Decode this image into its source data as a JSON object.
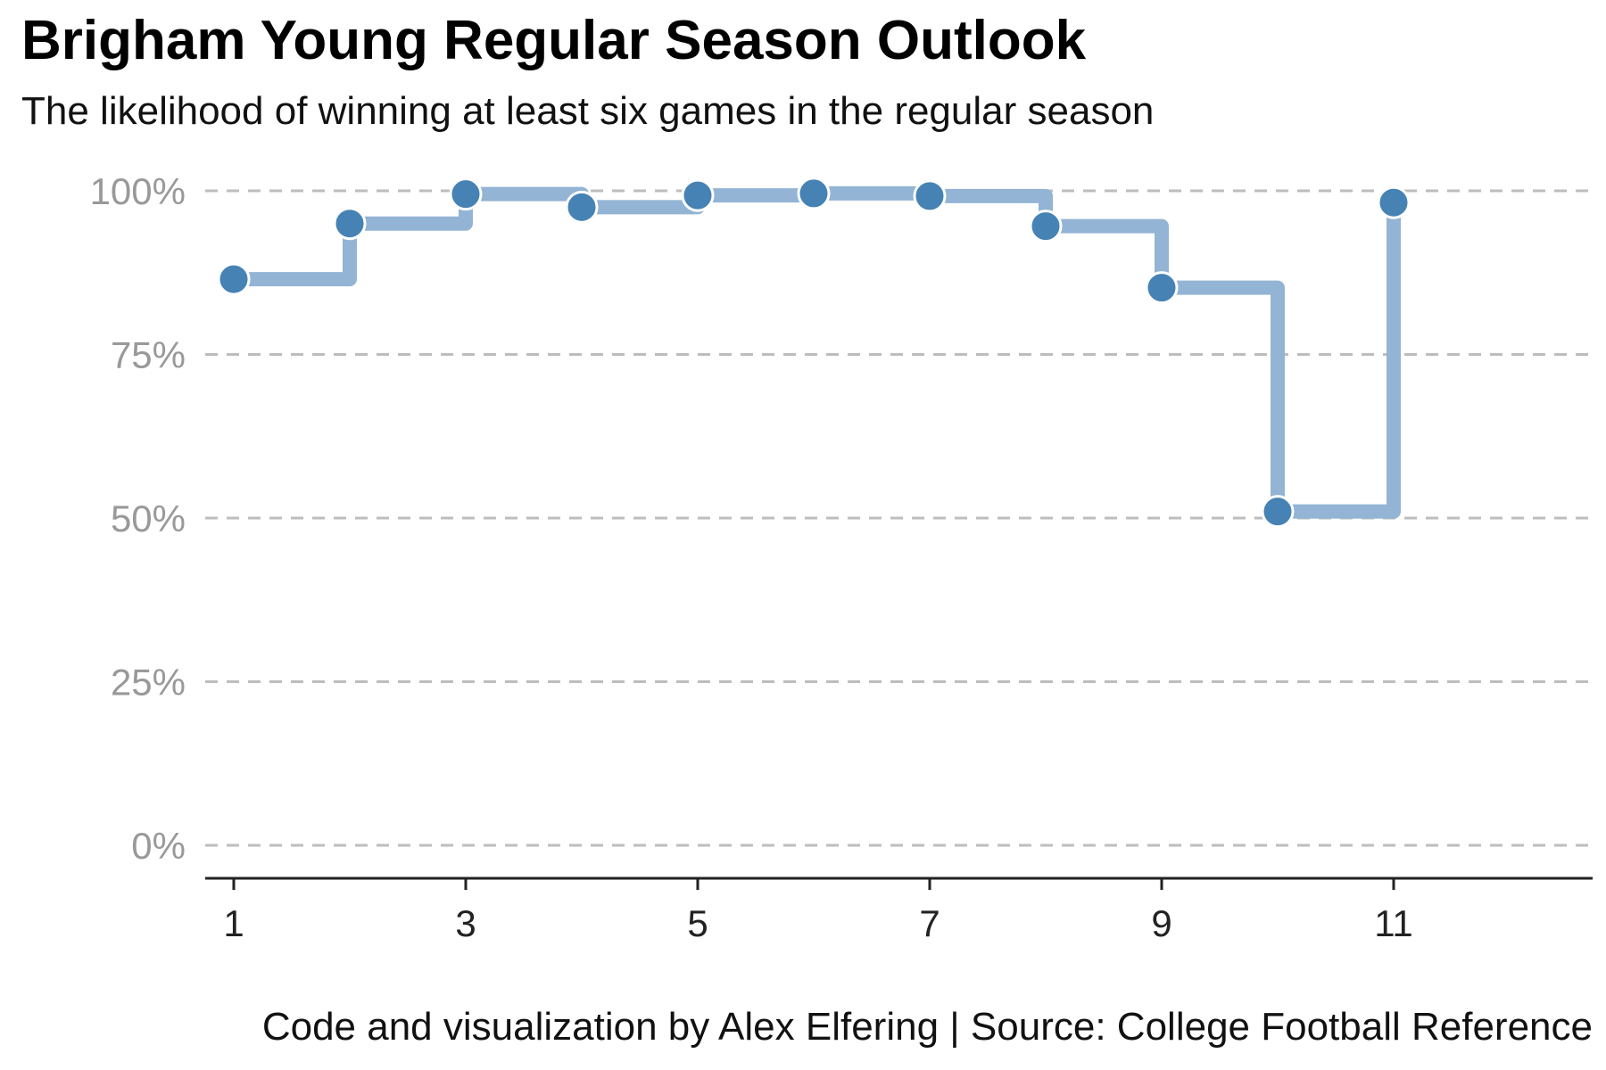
{
  "chart_data": {
    "type": "line",
    "step": true,
    "title": "Brigham Young Regular Season Outlook",
    "subtitle": "The likelihood of winning at least six games in the regular season",
    "caption": "Code and visualization by Alex Elfering | Source: College Football Reference",
    "x": [
      1,
      2,
      3,
      4,
      5,
      6,
      7,
      8,
      9,
      10,
      11
    ],
    "y": [
      86.5,
      95.0,
      99.5,
      97.5,
      99.3,
      99.6,
      99.2,
      94.6,
      85.2,
      51.0,
      98.2
    ],
    "xlim": [
      0.4,
      11.5
    ],
    "ylim": [
      -5,
      105
    ],
    "x_ticks": [
      1,
      3,
      5,
      7,
      9,
      11
    ],
    "x_tick_labels": [
      "1",
      "3",
      "5",
      "7",
      "9",
      "11"
    ],
    "y_ticks": [
      0,
      25,
      50,
      75,
      100
    ],
    "y_tick_labels": [
      "0%",
      "25%",
      "50%",
      "75%",
      "100%"
    ],
    "grid": "horizontal dashed",
    "colors": {
      "line": "#93b4d4",
      "point": "#4682b4",
      "grid": "#bdbdbd",
      "axis": "#222222"
    }
  }
}
